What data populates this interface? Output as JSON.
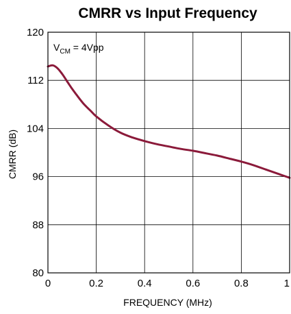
{
  "chart_data": {
    "type": "line",
    "title": "CMRR vs Input Frequency",
    "xlabel": "FREQUENCY (MHz)",
    "ylabel": "CMRR (dB)",
    "xlim": [
      0,
      1
    ],
    "ylim": [
      80,
      120
    ],
    "x_ticks": [
      "0",
      "0.2",
      "0.4",
      "0.6",
      "0.8",
      "1"
    ],
    "y_ticks": [
      "80",
      "88",
      "96",
      "104",
      "112",
      "120"
    ],
    "grid": true,
    "annotation": {
      "base": "V",
      "subscript": "CM",
      "rest": " = 4Vpp"
    },
    "line_color": "#8b1a3a",
    "series": [
      {
        "x": [
          0,
          0.02,
          0.04,
          0.06,
          0.08,
          0.1,
          0.12,
          0.15,
          0.18,
          0.2,
          0.25,
          0.3,
          0.35,
          0.4,
          0.45,
          0.5,
          0.55,
          0.6,
          0.65,
          0.7,
          0.75,
          0.8,
          0.85,
          0.9,
          0.95,
          1.0
        ],
        "y": [
          114.3,
          114.5,
          114.0,
          113.0,
          111.8,
          110.6,
          109.5,
          108.0,
          106.8,
          106.0,
          104.5,
          103.3,
          102.5,
          101.9,
          101.4,
          101.0,
          100.6,
          100.3,
          99.9,
          99.5,
          99.0,
          98.5,
          97.9,
          97.2,
          96.5,
          95.8
        ]
      }
    ]
  }
}
